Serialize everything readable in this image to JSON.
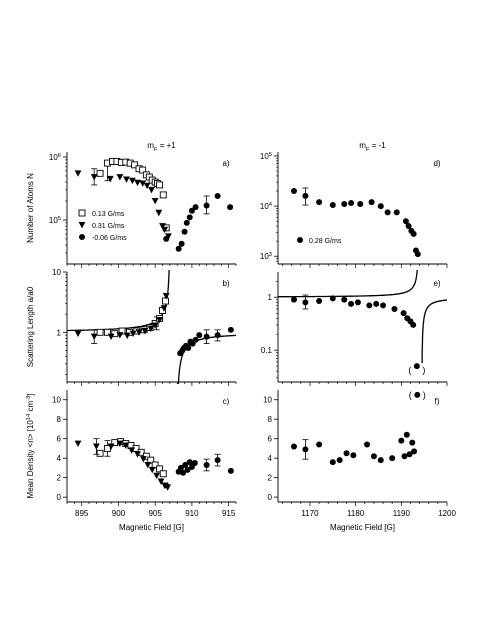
{
  "chart_data": [
    {
      "id": "a",
      "type": "scatter",
      "panel_label": "a)",
      "title": "m_F = +1",
      "ylabel": "Number of Atoms N",
      "yscale": "log",
      "xlim": [
        893,
        916
      ],
      "ylim": [
        20000,
        1200000
      ],
      "y_ticks": [
        {
          "v": 100000,
          "label": "10^5"
        },
        {
          "v": 1000000,
          "label": "10^6"
        }
      ],
      "legend_location": "left",
      "series": [
        {
          "name": "0.13 G/ms",
          "marker": "square-open",
          "points": [
            [
              897.5,
              550000
            ],
            [
              898.5,
              800000
            ],
            [
              899.2,
              850000
            ],
            [
              899.8,
              850000
            ],
            [
              900.4,
              820000
            ],
            [
              901.0,
              830000
            ],
            [
              901.6,
              800000
            ],
            [
              902.2,
              750000
            ],
            [
              902.8,
              650000
            ],
            [
              903.3,
              620000
            ],
            [
              903.8,
              520000
            ],
            [
              904.2,
              480000
            ],
            [
              904.6,
              430000
            ],
            [
              905.0,
              400000
            ],
            [
              905.3,
              380000
            ],
            [
              905.6,
              360000
            ],
            [
              906.1,
              250000
            ],
            [
              906.5,
              75000
            ]
          ],
          "error_bars": [
            {
              "x": 898.5,
              "y": 550000,
              "lo": 420000,
              "hi": 750000
            }
          ]
        },
        {
          "name": "0.31 G/ms",
          "marker": "triangle-down",
          "points": [
            [
              894.5,
              550000
            ],
            [
              896.7,
              480000
            ],
            [
              898.9,
              450000
            ],
            [
              900.2,
              480000
            ],
            [
              901.1,
              440000
            ],
            [
              901.9,
              420000
            ],
            [
              902.6,
              390000
            ],
            [
              903.3,
              380000
            ],
            [
              903.9,
              350000
            ],
            [
              904.5,
              300000
            ],
            [
              905.0,
              200000
            ],
            [
              905.5,
              130000
            ],
            [
              906.0,
              80000
            ],
            [
              906.3,
              70000
            ],
            [
              906.8,
              55000
            ]
          ],
          "error_bars": [
            {
              "x": 896.7,
              "y": 480000,
              "lo": 360000,
              "hi": 650000
            }
          ]
        },
        {
          "name": "-0.06 G/ms",
          "marker": "circle-filled",
          "points": [
            [
              906.5,
              50000
            ],
            [
              908.2,
              35000
            ],
            [
              908.6,
              42000
            ],
            [
              909.0,
              65000
            ],
            [
              909.3,
              90000
            ],
            [
              909.7,
              110000
            ],
            [
              910.0,
              140000
            ],
            [
              910.5,
              160000
            ],
            [
              912.0,
              170000
            ],
            [
              913.5,
              240000
            ],
            [
              915.2,
              160000
            ]
          ],
          "error_bars": [
            {
              "x": 912.0,
              "y": 170000,
              "lo": 125000,
              "hi": 240000
            }
          ]
        }
      ]
    },
    {
      "id": "b",
      "type": "scatter",
      "panel_label": "b)",
      "ylabel": "Scattering Length a/a0",
      "yscale": "log",
      "xlim": [
        893,
        916
      ],
      "ylim": [
        0.15,
        10
      ],
      "y_ticks": [
        {
          "v": 1,
          "label": "1"
        },
        {
          "v": 10,
          "label": "10"
        }
      ],
      "series": [
        {
          "name": "0.13 G/ms",
          "marker": "square-open",
          "points": [
            [
              897.5,
              1.0
            ],
            [
              898.5,
              1.0
            ],
            [
              899.5,
              0.95
            ],
            [
              900.5,
              1.05
            ],
            [
              901.5,
              1.0
            ],
            [
              902.5,
              1.05
            ],
            [
              903.5,
              1.1
            ],
            [
              904.3,
              1.2
            ],
            [
              905.0,
              1.4
            ],
            [
              905.6,
              1.7
            ],
            [
              906.0,
              2.3
            ],
            [
              906.4,
              3.3
            ]
          ],
          "error_bars": [
            {
              "x": 905.2,
              "y": 1.4,
              "lo": 1.1,
              "hi": 1.8
            }
          ]
        },
        {
          "name": "0.31 G/ms",
          "marker": "triangle-down",
          "points": [
            [
              894.5,
              0.95
            ],
            [
              896.7,
              0.85
            ],
            [
              899.0,
              0.85
            ],
            [
              900.2,
              0.9
            ],
            [
              901.2,
              0.88
            ],
            [
              902.0,
              0.95
            ],
            [
              902.8,
              1.0
            ],
            [
              903.6,
              1.05
            ],
            [
              904.4,
              1.15
            ],
            [
              905.0,
              1.3
            ],
            [
              905.6,
              1.6
            ],
            [
              906.2,
              2.5
            ],
            [
              906.5,
              4.0
            ]
          ],
          "error_bars": [
            {
              "x": 896.7,
              "y": 0.85,
              "lo": 0.65,
              "hi": 1.1
            }
          ]
        },
        {
          "name": "-0.06 G/ms",
          "marker": "circle-filled",
          "points": [
            [
              908.4,
              0.45
            ],
            [
              908.7,
              0.5
            ],
            [
              908.9,
              0.55
            ],
            [
              909.2,
              0.6
            ],
            [
              909.5,
              0.55
            ],
            [
              909.8,
              0.7
            ],
            [
              910.1,
              0.65
            ],
            [
              910.5,
              0.75
            ],
            [
              911.0,
              0.9
            ],
            [
              912.0,
              0.85
            ],
            [
              913.5,
              0.9
            ],
            [
              915.3,
              1.1
            ]
          ],
          "error_bars": [
            {
              "x": 912.0,
              "y": 0.85,
              "lo": 0.65,
              "hi": 1.1
            },
            {
              "x": 913.5,
              "y": 0.9,
              "lo": 0.72,
              "hi": 1.1
            }
          ]
        }
      ],
      "fit_curve": {
        "form": "a = 1 - w/(B - B0)",
        "B0": 907.0,
        "width": 1.0,
        "style": "solid"
      }
    },
    {
      "id": "c",
      "type": "scatter",
      "panel_label": "c)",
      "xlabel": "Magnetic Field [G]",
      "ylabel": "Mean Density <n> [10^14 cm^-3]",
      "xlim": [
        893,
        916
      ],
      "ylim": [
        -0.5,
        11
      ],
      "x_ticks": [
        895,
        900,
        905,
        910,
        915
      ],
      "y_ticks": [
        0,
        2,
        4,
        6,
        8,
        10
      ],
      "series": [
        {
          "name": "0.13 G/ms",
          "marker": "square-open",
          "points": [
            [
              897.5,
              4.5
            ],
            [
              898.5,
              5.0
            ],
            [
              899.5,
              5.6
            ],
            [
              900.3,
              5.7
            ],
            [
              901.0,
              5.5
            ],
            [
              901.7,
              5.3
            ],
            [
              902.4,
              5.0
            ],
            [
              903.1,
              4.6
            ],
            [
              903.8,
              4.2
            ],
            [
              904.4,
              3.8
            ],
            [
              905.0,
              3.3
            ],
            [
              905.6,
              2.9
            ],
            [
              906.1,
              2.4
            ]
          ],
          "error_bars": [
            {
              "x": 898.5,
              "y": 5.0,
              "lo": 4.2,
              "hi": 5.8
            }
          ]
        },
        {
          "name": "0.31 G/ms",
          "marker": "triangle-down",
          "points": [
            [
              894.5,
              5.5
            ],
            [
              897.0,
              5.2
            ],
            [
              899.0,
              5.2
            ],
            [
              900.2,
              5.5
            ],
            [
              901.0,
              5.3
            ],
            [
              901.8,
              4.8
            ],
            [
              902.6,
              4.4
            ],
            [
              903.4,
              3.9
            ],
            [
              904.0,
              3.3
            ],
            [
              904.6,
              2.8
            ],
            [
              905.2,
              2.2
            ],
            [
              905.8,
              1.6
            ],
            [
              906.3,
              1.2
            ],
            [
              906.7,
              1.0
            ]
          ],
          "error_bars": [
            {
              "x": 897.0,
              "y": 5.2,
              "lo": 4.4,
              "hi": 6.0
            }
          ]
        },
        {
          "name": "-0.06 G/ms",
          "marker": "circle-filled",
          "points": [
            [
              906.5,
              1.2
            ],
            [
              908.2,
              2.6
            ],
            [
              908.5,
              3.0
            ],
            [
              908.8,
              2.5
            ],
            [
              909.1,
              3.3
            ],
            [
              909.4,
              2.8
            ],
            [
              909.7,
              3.6
            ],
            [
              910.0,
              3.1
            ],
            [
              910.4,
              3.5
            ],
            [
              912.0,
              3.3
            ],
            [
              913.5,
              3.8
            ],
            [
              915.3,
              2.7
            ]
          ],
          "error_bars": [
            {
              "x": 912.0,
              "y": 3.3,
              "lo": 2.7,
              "hi": 3.9
            },
            {
              "x": 913.5,
              "y": 3.8,
              "lo": 3.2,
              "hi": 4.4
            }
          ]
        }
      ]
    },
    {
      "id": "d",
      "type": "scatter",
      "panel_label": "d)",
      "title": "m_F = -1",
      "yscale": "log",
      "xlim": [
        1163,
        1200
      ],
      "ylim": [
        700,
        120000
      ],
      "y_ticks": [
        {
          "v": 1000,
          "label": "10^3"
        },
        {
          "v": 10000,
          "label": "10^4"
        },
        {
          "v": 100000,
          "label": "10^5"
        }
      ],
      "series": [
        {
          "name": "0.28 G/ms",
          "marker": "circle-filled",
          "points": [
            [
              1166.5,
              20000
            ],
            [
              1169.0,
              16000
            ],
            [
              1172.0,
              12000
            ],
            [
              1175.0,
              10500
            ],
            [
              1177.5,
              11000
            ],
            [
              1179.0,
              11500
            ],
            [
              1181.0,
              11000
            ],
            [
              1183.5,
              12000
            ],
            [
              1185.5,
              10000
            ],
            [
              1187.0,
              7500
            ],
            [
              1189.0,
              7500
            ],
            [
              1191.0,
              5000
            ],
            [
              1191.6,
              4000
            ],
            [
              1192.2,
              3200
            ],
            [
              1192.7,
              2800
            ],
            [
              1193.2,
              1300
            ],
            [
              1193.6,
              1100
            ]
          ],
          "error_bars": [
            {
              "x": 1169.0,
              "y": 16000,
              "lo": 10500,
              "hi": 23000
            }
          ]
        }
      ]
    },
    {
      "id": "e",
      "type": "scatter",
      "panel_label": "e)",
      "yscale": "log",
      "xlim": [
        1163,
        1200
      ],
      "ylim": [
        0.025,
        3
      ],
      "y_ticks": [
        {
          "v": 0.1,
          "label": "0.1"
        },
        {
          "v": 1,
          "label": "1"
        }
      ],
      "series": [
        {
          "name": "0.28 G/ms",
          "marker": "circle-filled",
          "points": [
            [
              1166.5,
              0.9
            ],
            [
              1169.0,
              0.8
            ],
            [
              1172.0,
              0.85
            ],
            [
              1175.0,
              0.95
            ],
            [
              1177.5,
              0.9
            ],
            [
              1179.0,
              0.75
            ],
            [
              1180.5,
              0.8
            ],
            [
              1183.0,
              0.7
            ],
            [
              1184.5,
              0.75
            ],
            [
              1186.0,
              0.7
            ],
            [
              1188.5,
              0.6
            ],
            [
              1190.5,
              0.5
            ],
            [
              1191.3,
              0.4
            ],
            [
              1192.0,
              0.35
            ],
            [
              1192.6,
              0.3
            ],
            [
              1193.4,
              0.05
            ]
          ],
          "error_bars": [
            {
              "x": 1169.0,
              "y": 0.8,
              "lo": 0.6,
              "hi": 1.1
            }
          ]
        }
      ],
      "fit_curve": {
        "form": "a = 1 - w/(B - B0)",
        "B0": 1193.8,
        "width": 0.7,
        "style": "solid"
      }
    },
    {
      "id": "f",
      "type": "scatter",
      "panel_label": "f)",
      "xlabel": "Magnetic Field [G]",
      "xlim": [
        1163,
        1200
      ],
      "ylim": [
        -0.5,
        11
      ],
      "x_ticks": [
        1170,
        1180,
        1190,
        1200
      ],
      "y_ticks": [
        0,
        2,
        4,
        6,
        8,
        10
      ],
      "series": [
        {
          "name": "0.28 G/ms",
          "marker": "circle-filled",
          "points": [
            [
              1166.5,
              5.2
            ],
            [
              1169.0,
              4.9
            ],
            [
              1172.0,
              5.4
            ],
            [
              1175.0,
              3.6
            ],
            [
              1176.5,
              3.8
            ],
            [
              1178.0,
              4.5
            ],
            [
              1179.5,
              4.3
            ],
            [
              1182.5,
              5.4
            ],
            [
              1184.0,
              4.2
            ],
            [
              1185.5,
              3.8
            ],
            [
              1188.0,
              4.0
            ],
            [
              1190.0,
              5.8
            ],
            [
              1190.7,
              4.2
            ],
            [
              1191.2,
              6.4
            ],
            [
              1191.8,
              4.4
            ],
            [
              1192.4,
              5.6
            ],
            [
              1192.8,
              4.7
            ],
            [
              1193.5,
              10.5
            ]
          ],
          "error_bars": [
            {
              "x": 1169.0,
              "y": 4.9,
              "lo": 3.9,
              "hi": 5.9
            }
          ]
        }
      ]
    }
  ]
}
